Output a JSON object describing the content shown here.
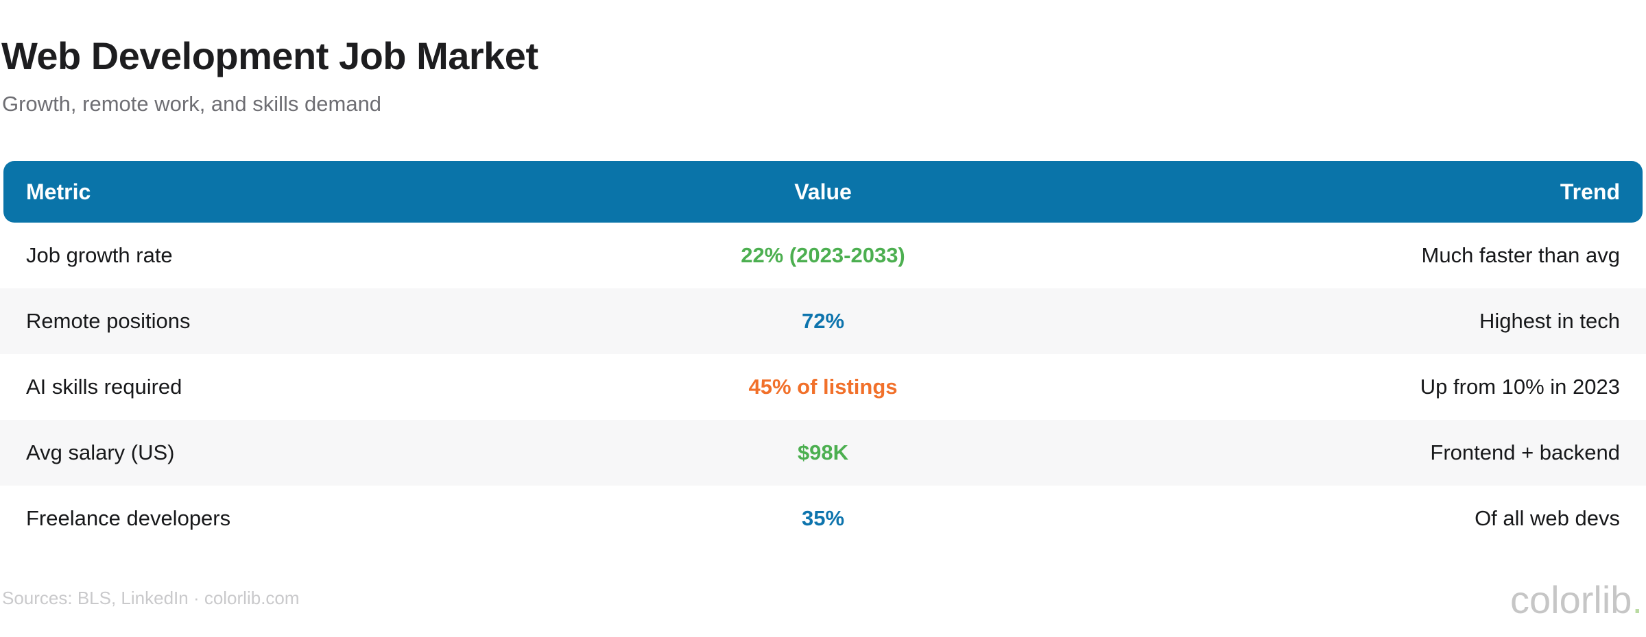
{
  "header": {
    "title": "Web Development Job Market",
    "subtitle": "Growth, remote work, and skills demand"
  },
  "table": {
    "columns": [
      "Metric",
      "Value",
      "Trend"
    ],
    "rows": [
      {
        "metric": "Job growth rate",
        "value": "22% (2023-2033)",
        "value_color": "#4caf50",
        "trend": "Much faster than avg"
      },
      {
        "metric": "Remote positions",
        "value": "72%",
        "value_color": "#0d74ad",
        "trend": "Highest in tech"
      },
      {
        "metric": "AI skills required",
        "value": "45% of listings",
        "value_color": "#f1702a",
        "trend": "Up from 10% in 2023"
      },
      {
        "metric": "Avg salary (US)",
        "value": "$98K",
        "value_color": "#4caf50",
        "trend": "Frontend + backend"
      },
      {
        "metric": "Freelance developers",
        "value": "35%",
        "value_color": "#0d74ad",
        "trend": "Of all web devs"
      }
    ]
  },
  "footer": {
    "sources": "Sources: BLS, LinkedIn · colorlib.com",
    "brand": "colorlib",
    "brand_dot": "."
  },
  "colors": {
    "header_bg": "#0a74a9",
    "alt_row_bg": "#f7f7f8",
    "green": "#4caf50",
    "blue": "#0d74ad",
    "orange": "#f1702a",
    "title_text": "#1d1d1f",
    "subtitle_text": "#6e6e73",
    "footer_text": "#c9c9cb"
  },
  "chart_data": {
    "type": "table",
    "title": "Web Development Job Market",
    "subtitle": "Growth, remote work, and skills demand",
    "columns": [
      "Metric",
      "Value",
      "Trend"
    ],
    "rows": [
      [
        "Job growth rate",
        "22% (2023-2033)",
        "Much faster than avg"
      ],
      [
        "Remote positions",
        "72%",
        "Highest in tech"
      ],
      [
        "AI skills required",
        "45% of listings",
        "Up from 10% in 2023"
      ],
      [
        "Avg salary (US)",
        "$98K",
        "Frontend + backend"
      ],
      [
        "Freelance developers",
        "35%",
        "Of all web devs"
      ]
    ],
    "value_colors": [
      "#4caf50",
      "#0d74ad",
      "#f1702a",
      "#4caf50",
      "#0d74ad"
    ],
    "layout": "header row blue #0a74a9, zebra striping on rows 2 and 4 (#f7f7f8), metric left-aligned, value centered, trend right-aligned"
  }
}
